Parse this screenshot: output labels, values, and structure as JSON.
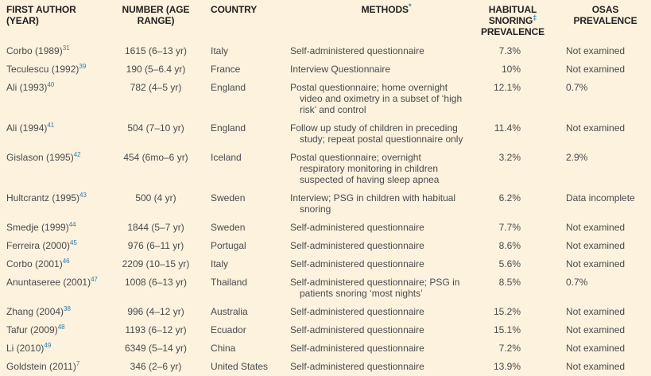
{
  "colors": {
    "background": "#fcf2de",
    "header_text": "#252021",
    "body_text": "#4a4b4d",
    "marker_blue": "#2c7bac"
  },
  "header": {
    "col1_line1": "FIRST AUTHOR",
    "col1_line2": "(YEAR)",
    "col2_line1": "NUMBER (AGE",
    "col2_line2": "RANGE)",
    "col3": "COUNTRY",
    "col4": "METHODS",
    "col4_marker": "*",
    "col5_line1": "HABITUAL",
    "col5_line2": "SNORING",
    "col5_marker": "‡",
    "col5_line3": "PREVALENCE",
    "col6_line1": "OSAS",
    "col6_line2": "PREVALENCE"
  },
  "table": {
    "rows": [
      {
        "author": "Corbo (1989)",
        "ref": "31",
        "number": "1615 (6–13 yr)",
        "country": "Italy",
        "methods_lines": [
          "Self-administered questionnaire"
        ],
        "snoring": "7.3%",
        "osas": "Not examined"
      },
      {
        "author": "Teculescu (1992)",
        "ref": "39",
        "number": "190 (5–6.4 yr)",
        "country": "France",
        "methods_lines": [
          "Interview Questionnaire"
        ],
        "snoring": "10%",
        "osas": "Not examined"
      },
      {
        "author": "Ali (1993)",
        "ref": "40",
        "number": "782 (4–5 yr)",
        "country": "England",
        "methods_lines": [
          "Postal questionnaire; home overnight",
          "video and oximetry in a subset of ‘high",
          "risk’ and control"
        ],
        "snoring": "12.1%",
        "osas": "0.7%"
      },
      {
        "author": "Ali (1994)",
        "ref": "41",
        "number": "504 (7–10 yr)",
        "country": "England",
        "methods_lines": [
          "Follow up study of children in preceding",
          "study; repeat postal questionnaire only"
        ],
        "snoring": "11.4%",
        "osas": "Not examined"
      },
      {
        "author": "Gislason (1995)",
        "ref": "42",
        "number": "454 (6mo–6 yr)",
        "country": "Iceland",
        "methods_lines": [
          "Postal questionnaire; overnight",
          "respiratory monitoring in children",
          "suspected of having sleep apnea"
        ],
        "snoring": "3.2%",
        "osas": "2.9%"
      },
      {
        "author": "Hultcrantz (1995)",
        "ref": "43",
        "number": "500 (4 yr)",
        "country": "Sweden",
        "methods_lines": [
          "Interview; PSG in children with habitual",
          "snoring"
        ],
        "snoring": "6.2%",
        "osas": "Data incomplete"
      },
      {
        "author": "Smedje (1999)",
        "ref": "44",
        "number": "1844 (5–7 yr)",
        "country": "Sweden",
        "methods_lines": [
          "Self-administered questionnaire"
        ],
        "snoring": "7.7%",
        "osas": "Not examined"
      },
      {
        "author": "Ferreira (2000)",
        "ref": "45",
        "number": "976 (6–11 yr)",
        "country": "Portugal",
        "methods_lines": [
          "Self-administered questionnaire"
        ],
        "snoring": "8.6%",
        "osas": "Not examined"
      },
      {
        "author": "Corbo (2001)",
        "ref": "46",
        "number": "2209 (10–15 yr)",
        "country": "Italy",
        "methods_lines": [
          "Self-administered questionnaire"
        ],
        "snoring": "5.6%",
        "osas": "Not examined"
      },
      {
        "author": "Anuntaseree (2001)",
        "ref": "47",
        "number": "1008 (6–13 yr)",
        "country": "Thailand",
        "methods_lines": [
          "Self-administered questionnaire; PSG in",
          "patients snoring ‘most nights’"
        ],
        "snoring": "8.5%",
        "osas": "0.7%"
      },
      {
        "author": "Zhang (2004)",
        "ref": "38",
        "number": "996 (4–12 yr)",
        "country": "Australia",
        "methods_lines": [
          "Self-administered questionnaire"
        ],
        "snoring": "15.2%",
        "osas": "Not examined"
      },
      {
        "author": "Tafur (2009)",
        "ref": "48",
        "number": "1193 (6–12 yr)",
        "country": "Ecuador",
        "methods_lines": [
          "Self-administered questionnaire"
        ],
        "snoring": "15.1%",
        "osas": "Not examined"
      },
      {
        "author": "Li (2010)",
        "ref": "49",
        "number": "6349 (5–14 yr)",
        "country": "China",
        "methods_lines": [
          "Self-administered questionnaire"
        ],
        "snoring": "7.2%",
        "osas": "Not examined"
      },
      {
        "author": "Goldstein (2011)",
        "ref": "7",
        "number": "346 (2–6 yr)",
        "country": "United States",
        "methods_lines": [
          "Self-administered questionnaire"
        ],
        "snoring": "13.9%",
        "osas": "Not examined"
      }
    ]
  }
}
